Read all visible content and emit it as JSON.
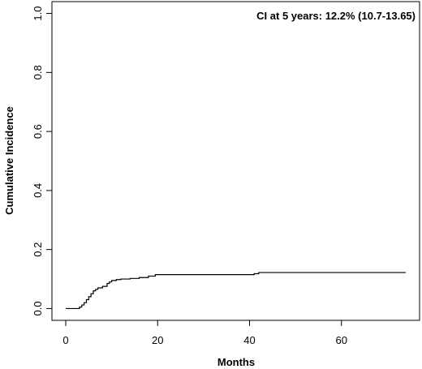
{
  "chart_data": {
    "type": "line",
    "title": "",
    "xlabel": "Months",
    "ylabel": "Cumulative Incidence",
    "xlim": [
      -3,
      77
    ],
    "ylim": [
      -0.04,
      1.04
    ],
    "x_ticks": [
      0,
      20,
      40,
      60
    ],
    "y_ticks": [
      0.0,
      0.2,
      0.4,
      0.6,
      0.8,
      1.0
    ],
    "x_tick_labels": [
      "0",
      "20",
      "40",
      "60"
    ],
    "y_tick_labels": [
      "0.0",
      "0.2",
      "0.4",
      "0.6",
      "0.8",
      "1.0"
    ],
    "annotation": "CI at 5 years: 12.2% (10.7-13.65)",
    "grid": false,
    "legend": "none",
    "series": [
      {
        "step": true,
        "color": "#000000",
        "x": [
          0,
          2.5,
          3,
          3.5,
          4,
          4.5,
          5,
          5.5,
          6,
          6.5,
          7,
          8,
          9,
          9.5,
          10,
          11,
          12,
          14,
          16,
          18,
          19.5,
          25,
          30,
          35,
          40,
          41,
          42,
          50,
          60,
          70,
          74
        ],
        "y": [
          0.0,
          0.0,
          0.005,
          0.012,
          0.02,
          0.03,
          0.04,
          0.05,
          0.06,
          0.065,
          0.07,
          0.075,
          0.085,
          0.09,
          0.095,
          0.098,
          0.1,
          0.102,
          0.105,
          0.11,
          0.115,
          0.115,
          0.115,
          0.115,
          0.115,
          0.118,
          0.122,
          0.122,
          0.122,
          0.122,
          0.122
        ]
      }
    ]
  }
}
